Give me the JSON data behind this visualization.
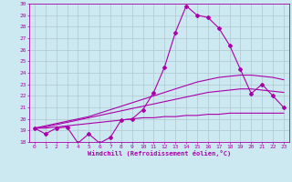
{
  "xlabel": "Windchill (Refroidissement éolien,°C)",
  "x": [
    0,
    1,
    2,
    3,
    4,
    5,
    6,
    7,
    8,
    9,
    10,
    11,
    12,
    13,
    14,
    15,
    16,
    17,
    18,
    19,
    20,
    21,
    22,
    23
  ],
  "y_main": [
    19.2,
    18.7,
    19.2,
    19.3,
    17.9,
    18.7,
    17.9,
    18.4,
    19.9,
    20.0,
    20.8,
    22.3,
    24.5,
    27.5,
    29.8,
    29.0,
    28.8,
    27.9,
    26.4,
    24.3,
    22.2,
    23.0,
    22.0,
    21.0
  ],
  "y_smooth1": [
    19.2,
    19.4,
    19.6,
    19.8,
    20.0,
    20.2,
    20.5,
    20.8,
    21.1,
    21.4,
    21.7,
    22.0,
    22.3,
    22.6,
    22.9,
    23.2,
    23.4,
    23.6,
    23.7,
    23.8,
    23.8,
    23.7,
    23.6,
    23.4
  ],
  "y_smooth2": [
    19.2,
    19.3,
    19.5,
    19.7,
    19.9,
    20.1,
    20.3,
    20.5,
    20.7,
    20.9,
    21.1,
    21.3,
    21.5,
    21.7,
    21.9,
    22.1,
    22.3,
    22.4,
    22.5,
    22.6,
    22.6,
    22.5,
    22.4,
    22.3
  ],
  "y_smooth3": [
    19.2,
    19.2,
    19.3,
    19.4,
    19.5,
    19.6,
    19.7,
    19.8,
    19.9,
    20.0,
    20.1,
    20.1,
    20.2,
    20.2,
    20.3,
    20.3,
    20.4,
    20.4,
    20.5,
    20.5,
    20.5,
    20.5,
    20.5,
    20.5
  ],
  "line_color": "#aa00aa",
  "bg_color": "#cce8f0",
  "grid_color": "#b0c8d0",
  "ylim": [
    18,
    30
  ],
  "xlim": [
    -0.5,
    23.5
  ],
  "yticks": [
    18,
    19,
    20,
    21,
    22,
    23,
    24,
    25,
    26,
    27,
    28,
    29,
    30
  ],
  "xticks": [
    0,
    1,
    2,
    3,
    4,
    5,
    6,
    7,
    8,
    9,
    10,
    11,
    12,
    13,
    14,
    15,
    16,
    17,
    18,
    19,
    20,
    21,
    22,
    23
  ]
}
